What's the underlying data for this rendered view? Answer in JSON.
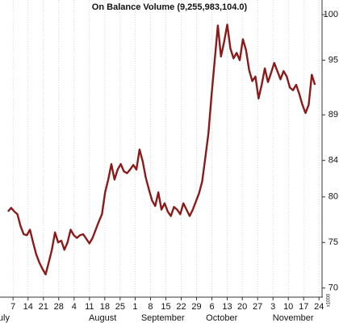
{
  "chart_data": {
    "type": "line",
    "title": "On Balance Volume (9,255,983,104.0)",
    "axis_unit": "x1000",
    "color": "#8b1a1a",
    "values": [
      78.4,
      78.8,
      78.4,
      78.1,
      76.8,
      75.9,
      75.8,
      76.4,
      75.0,
      73.7,
      72.8,
      72.1,
      71.5,
      72.8,
      74.2,
      76.1,
      75.0,
      75.2,
      74.2,
      75.0,
      76.4,
      75.8,
      75.5,
      75.8,
      75.9,
      75.4,
      74.9,
      75.5,
      76.4,
      77.3,
      78.1,
      80.5,
      81.9,
      83.6,
      81.9,
      83.0,
      83.6,
      82.8,
      82.6,
      83.0,
      83.5,
      83.0,
      85.2,
      83.9,
      82.1,
      80.8,
      79.6,
      79.0,
      80.5,
      78.6,
      79.3,
      78.4,
      77.9,
      78.9,
      78.6,
      78.1,
      79.3,
      78.6,
      77.9,
      78.6,
      79.5,
      80.4,
      81.7,
      84.3,
      87.0,
      91.2,
      95.0,
      98.8,
      95.4,
      97.0,
      98.9,
      96.3,
      95.2,
      95.8,
      95.0,
      97.3,
      96.1,
      93.9,
      92.7,
      93.2,
      90.8,
      92.3,
      94.1,
      92.6,
      93.6,
      94.7,
      93.8,
      92.9,
      93.8,
      93.2,
      92.0,
      91.7,
      92.3,
      91.3,
      90.1,
      89.2,
      90.1,
      93.4,
      92.3
    ],
    "xlim": [
      -0.5,
      99.5
    ],
    "xticks": [
      {
        "value": 1.6,
        "label": "7"
      },
      {
        "value": 6.4,
        "label": "14"
      },
      {
        "value": 11.3,
        "label": "21"
      },
      {
        "value": 16.2,
        "label": "28"
      },
      {
        "value": 21.1,
        "label": "4"
      },
      {
        "value": 26.0,
        "label": "11"
      },
      {
        "value": 30.9,
        "label": "18"
      },
      {
        "value": 35.8,
        "label": "25"
      },
      {
        "value": 40.6,
        "label": "1"
      },
      {
        "value": 45.5,
        "label": "8"
      },
      {
        "value": 50.4,
        "label": "15"
      },
      {
        "value": 55.3,
        "label": "22"
      },
      {
        "value": 60.2,
        "label": "29"
      },
      {
        "value": 65.1,
        "label": "6"
      },
      {
        "value": 70.0,
        "label": "13"
      },
      {
        "value": 74.8,
        "label": "20"
      },
      {
        "value": 79.7,
        "label": "27"
      },
      {
        "value": 84.6,
        "label": "3"
      },
      {
        "value": 89.5,
        "label": "10"
      },
      {
        "value": 94.4,
        "label": "17"
      },
      {
        "value": 99.3,
        "label": "24"
      }
    ],
    "months": [
      {
        "value": -3.1,
        "label": "uly"
      },
      {
        "value": 25.8,
        "label": "August"
      },
      {
        "value": 42.5,
        "label": "September"
      },
      {
        "value": 63.2,
        "label": "October"
      },
      {
        "value": 84.5,
        "label": "November"
      }
    ],
    "ylim": [
      69,
      101.6
    ],
    "yticks": [
      100,
      95,
      89,
      84,
      80,
      75,
      70
    ],
    "grid": true
  }
}
